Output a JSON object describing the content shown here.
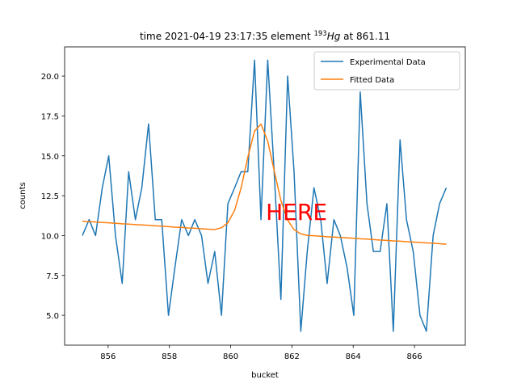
{
  "chart_data": {
    "type": "line",
    "title_parts": [
      "time 2021-04-19 23:17:35 element ",
      "193",
      "Hg",
      " at 861.11"
    ],
    "xlabel": "bucket",
    "ylabel": "counts",
    "x": [
      855.16,
      855.38,
      855.59,
      855.81,
      856.02,
      856.24,
      856.46,
      856.67,
      856.89,
      857.1,
      857.32,
      857.54,
      857.75,
      857.97,
      858.18,
      858.4,
      858.62,
      858.83,
      859.05,
      859.26,
      859.48,
      859.7,
      859.91,
      860.13,
      860.34,
      860.56,
      860.78,
      860.99,
      861.21,
      861.42,
      861.64,
      861.86,
      862.07,
      862.29,
      862.5,
      862.72,
      862.94,
      863.15,
      863.37,
      863.58,
      863.8,
      864.02,
      864.23,
      864.45,
      864.66,
      864.88,
      865.1,
      865.31,
      865.53,
      865.74,
      865.96,
      866.18,
      866.39,
      866.61,
      866.82,
      867.04
    ],
    "series": [
      {
        "name": "Experimental Data",
        "color": "#1f77b4",
        "values": [
          10,
          11,
          10,
          13,
          15,
          10,
          7,
          14,
          11,
          13,
          17,
          11,
          11,
          5,
          8,
          11,
          10,
          11,
          10,
          7,
          9,
          5,
          12,
          13,
          14,
          14,
          21,
          11,
          21,
          14,
          6,
          20,
          14,
          4,
          9,
          13,
          11,
          7,
          11,
          10,
          8,
          5,
          19,
          12,
          9,
          9,
          12,
          4,
          16,
          11,
          9,
          5,
          4,
          10,
          12,
          13
        ]
      },
      {
        "name": "Fitted Data",
        "color": "#ff7f0e",
        "values": [
          10.9,
          10.87,
          10.85,
          10.82,
          10.8,
          10.77,
          10.74,
          10.72,
          10.69,
          10.67,
          10.64,
          10.61,
          10.59,
          10.56,
          10.53,
          10.51,
          10.48,
          10.46,
          10.43,
          10.4,
          10.38,
          10.49,
          10.8,
          11.59,
          12.98,
          14.91,
          16.55,
          16.99,
          15.92,
          14.08,
          12.2,
          10.97,
          10.37,
          10.11,
          10.01,
          9.99,
          9.96,
          9.93,
          9.91,
          9.88,
          9.86,
          9.83,
          9.8,
          9.78,
          9.75,
          9.72,
          9.7,
          9.67,
          9.65,
          9.62,
          9.59,
          9.57,
          9.54,
          9.52,
          9.49,
          9.46
        ]
      }
    ],
    "xlim": [
      854.58,
      867.66
    ],
    "ylim": [
      3.13,
      21.83
    ],
    "xticks": [
      856,
      858,
      860,
      862,
      864,
      866
    ],
    "yticks": [
      {
        "value": 5,
        "label": "5.0"
      },
      {
        "value": 7.5,
        "label": "7.5"
      },
      {
        "value": 10,
        "label": "10.0"
      },
      {
        "value": 12.5,
        "label": "12.5"
      },
      {
        "value": 15,
        "label": "15.0"
      },
      {
        "value": 17.5,
        "label": "17.5"
      },
      {
        "value": 20,
        "label": "20.0"
      }
    ],
    "legend": "upper right",
    "annotation": {
      "text": "HERE",
      "x": 861.15,
      "y": 11.5,
      "color": "red"
    }
  }
}
